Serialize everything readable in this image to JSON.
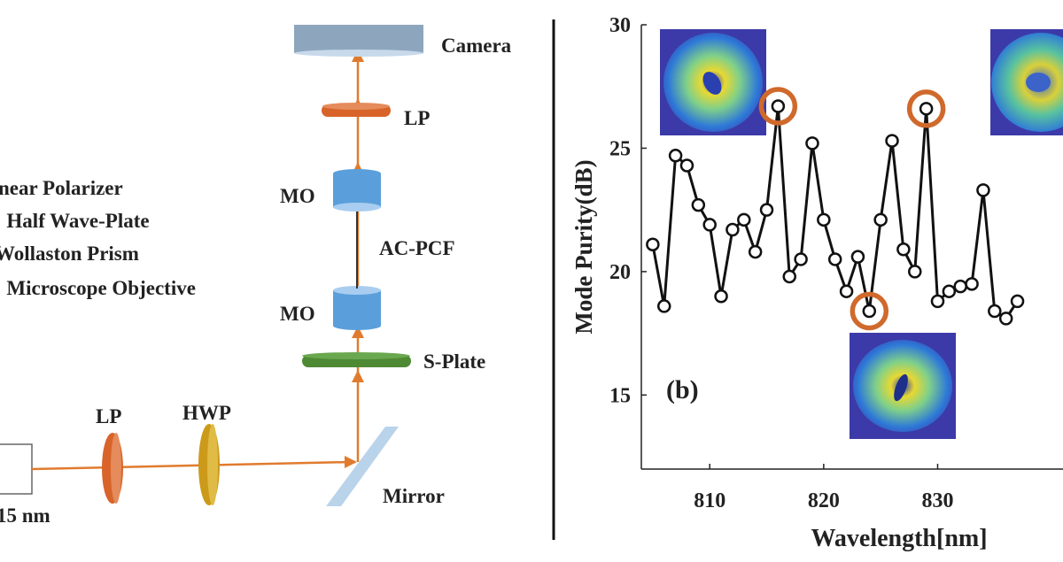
{
  "setup": {
    "legend_lines": [
      "near Polarizer",
      ": Half Wave-Plate",
      "Wollaston Prism",
      ": Microscope Objective"
    ],
    "source_label": "15 nm",
    "components": {
      "camera": "Camera",
      "lp_top": "LP",
      "mo_top": "MO",
      "fiber": "AC-PCF",
      "mo_bottom": "MO",
      "s_plate": "S-Plate",
      "lp_bottom": "LP",
      "hwp": "HWP",
      "mirror": "Mirror"
    },
    "colors": {
      "beam": "#e07b2e",
      "camera": "#8ea6bd",
      "lp": "#d8642a",
      "objective": "#5a9fdb",
      "s_plate": "#4e8a34",
      "hwp": "#cc9a1a",
      "mirror": "#b9d3ea"
    }
  },
  "chart_data": {
    "type": "line",
    "panel_label": "(b)",
    "xlabel": "Wavelength[nm]",
    "ylabel": "Mode Purity(dB)",
    "xlim": [
      804,
      841
    ],
    "ylim": [
      12,
      30
    ],
    "xticks": [
      810,
      820,
      830
    ],
    "yticks": [
      15,
      20,
      25,
      30
    ],
    "series": [
      {
        "name": "Mode purity",
        "x": [
          805,
          806,
          807,
          808,
          809,
          810,
          811,
          812,
          813,
          814,
          815,
          816,
          817,
          818,
          819,
          820,
          821,
          822,
          823,
          824,
          825,
          826,
          827,
          828,
          829,
          830,
          831,
          832,
          833,
          834,
          835,
          836,
          837
        ],
        "y": [
          21.1,
          18.6,
          24.7,
          24.3,
          22.7,
          21.9,
          19.0,
          21.7,
          22.1,
          20.8,
          22.5,
          26.7,
          19.8,
          20.5,
          25.2,
          22.1,
          20.5,
          19.2,
          20.6,
          18.4,
          22.1,
          25.3,
          20.9,
          20.0,
          26.6,
          18.8,
          19.2,
          19.4,
          19.5,
          23.3,
          18.4,
          18.1,
          18.8
        ]
      }
    ],
    "highlighted": [
      {
        "x": 816,
        "y": 26.7
      },
      {
        "x": 824,
        "y": 18.4
      },
      {
        "x": 829,
        "y": 26.6
      }
    ],
    "colors": {
      "line": "#111111",
      "highlight": "#d0692c"
    }
  }
}
